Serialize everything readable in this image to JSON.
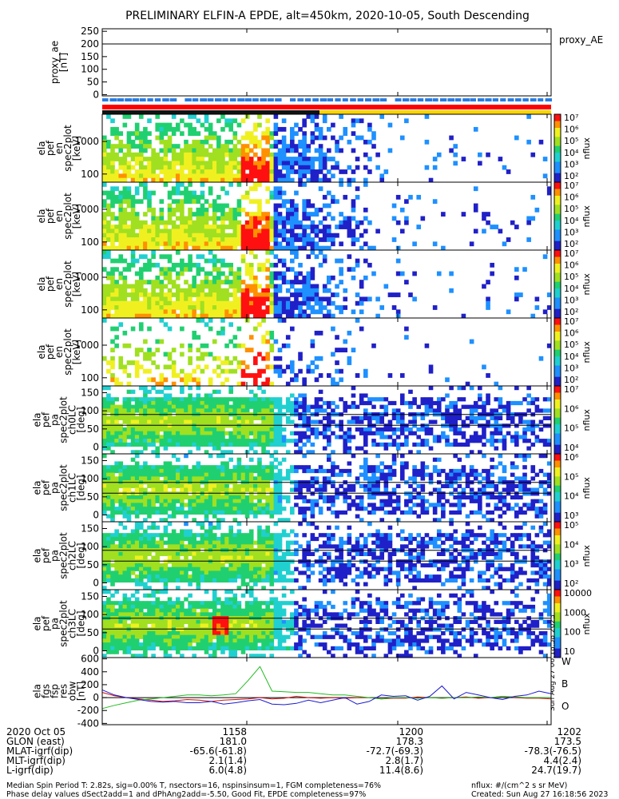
{
  "title": "PRELIMINARY ELFIN-A EPDE, alt=450km, 2020-10-05, South Descending",
  "created_stamp": "Sun Aug 27 06:18:58 2023",
  "chart_data": {
    "type": "heatmap",
    "x_ticks": [
      "1158",
      "1200",
      "1202"
    ],
    "panels": [
      {
        "kind": "line",
        "ylabel": [
          "proxy_ae",
          "[nT]"
        ],
        "ylim": [
          -5,
          260
        ],
        "yticks": [
          "250",
          "200",
          "150",
          "100",
          "50",
          "0"
        ],
        "legend": "proxy_AE",
        "hline": 200
      },
      {
        "kind": "spec",
        "ylabel": [
          "ela",
          "pef",
          "en",
          "spec2plot",
          "[keV]"
        ],
        "yticks": [
          "1000",
          "100"
        ],
        "zlabel": "nflux",
        "zticks": [
          "10⁷",
          "10⁶",
          "10⁵",
          "10⁴",
          "10³",
          "10²"
        ]
      },
      {
        "kind": "spec",
        "ylabel": [
          "ela",
          "pef",
          "en",
          "spec2plot",
          "[keV]"
        ],
        "yticks": [
          "1000",
          "100"
        ],
        "zlabel": "nflux",
        "zticks": [
          "10⁷",
          "10⁶",
          "10⁵",
          "10⁴",
          "10³",
          "10²"
        ]
      },
      {
        "kind": "spec",
        "ylabel": [
          "ela",
          "pef",
          "en",
          "spec2plot",
          "[keV]"
        ],
        "yticks": [
          "1000",
          "100"
        ],
        "zlabel": "nflux",
        "zticks": [
          "10⁷",
          "10⁶",
          "10⁵",
          "10⁴",
          "10³",
          "10²"
        ]
      },
      {
        "kind": "spec",
        "ylabel": [
          "ela",
          "pef",
          "en",
          "spec2plot",
          "[keV]"
        ],
        "yticks": [
          "1000",
          "100"
        ],
        "zlabel": "nflux",
        "zticks": [
          "10⁷",
          "10⁶",
          "10⁵",
          "10⁴",
          "10³",
          "10²"
        ]
      },
      {
        "kind": "pa",
        "ylabel": [
          "ela",
          "pef",
          "pa",
          "spec2plot",
          "ch0LC",
          "[deg]"
        ],
        "yticks": [
          "150",
          "100",
          "50",
          "0"
        ],
        "zlabel": "nflux",
        "zticks": [
          "10⁷",
          "10⁶",
          "10⁵",
          "10⁴"
        ]
      },
      {
        "kind": "pa",
        "ylabel": [
          "ela",
          "pef",
          "pa",
          "spec2plot",
          "ch1LC",
          "[deg]"
        ],
        "yticks": [
          "150",
          "100",
          "50",
          "0"
        ],
        "zlabel": "nflux",
        "zticks": [
          "10⁶",
          "10⁵",
          "10⁴",
          "10³"
        ]
      },
      {
        "kind": "pa",
        "ylabel": [
          "ela",
          "pef",
          "pa",
          "spec2plot",
          "ch2LC",
          "[deg]"
        ],
        "yticks": [
          "150",
          "100",
          "50",
          "0"
        ],
        "zlabel": "nflux",
        "zticks": [
          "10⁵",
          "10⁴",
          "10³",
          "10²"
        ]
      },
      {
        "kind": "pa",
        "ylabel": [
          "ela",
          "pef",
          "pa",
          "spec2plot",
          "ch3LC",
          "[deg]"
        ],
        "yticks": [
          "150",
          "100",
          "50",
          "0"
        ],
        "zlabel": "nflux",
        "zticks": [
          "10000",
          "1000",
          "100",
          "10"
        ]
      },
      {
        "kind": "line",
        "ylabel": [
          "ela",
          "fgs",
          "fsp",
          "res",
          "obw",
          "[nT]"
        ],
        "ylim": [
          -420,
          620
        ],
        "yticks": [
          "600",
          "400",
          "200",
          "0",
          "-200",
          "-400"
        ],
        "series": [
          {
            "name": "W",
            "color": "#d11010",
            "values": [
              80,
              30,
              0,
              -20,
              -40,
              -60,
              -50,
              -30,
              -40,
              -60,
              -40,
              -30,
              -20,
              0,
              -20,
              -10,
              20,
              0,
              -10,
              0,
              -10,
              0,
              0,
              -20,
              -10,
              -10,
              10,
              0,
              -10,
              0,
              10,
              -10,
              0,
              20,
              0,
              -10,
              -10,
              -20
            ]
          },
          {
            "name": "B",
            "color": "#22bb22",
            "values": [
              -170,
              -120,
              -80,
              -40,
              -20,
              0,
              20,
              40,
              40,
              30,
              40,
              60,
              260,
              480,
              100,
              90,
              80,
              80,
              60,
              40,
              40,
              20,
              0,
              -20,
              0,
              0,
              -10,
              0,
              -10,
              0,
              0,
              10,
              0,
              20,
              10,
              0,
              0,
              0
            ]
          },
          {
            "name": "O",
            "color": "#1a1ad0",
            "values": [
              120,
              40,
              0,
              -30,
              -60,
              -70,
              -60,
              -80,
              -80,
              -60,
              -100,
              -80,
              -50,
              -30,
              -100,
              -110,
              -90,
              -40,
              -80,
              -40,
              0,
              -100,
              -60,
              40,
              20,
              30,
              -40,
              20,
              180,
              -20,
              80,
              40,
              0,
              -30,
              20,
              40,
              100,
              60
            ]
          }
        ]
      }
    ]
  },
  "bars": {
    "blue_dashed": "#2a7de1",
    "black_red_split": "#111111",
    "red": "#ff0000",
    "yellow": "#ffd400"
  },
  "footer": {
    "labels": [
      "2020 Oct 05",
      "GLON (east)",
      "MLAT-igrf(dip)",
      "MLT-igrf(dip)",
      "L-igrf(dip)"
    ],
    "col1": [
      "1158",
      "181.0",
      "-65.6(-61.8)",
      "2.1(1.4)",
      "6.0(4.8)"
    ],
    "col2": [
      "1200",
      "178.3",
      "-72.7(-69.3)",
      "2.8(1.7)",
      "11.4(8.6)"
    ],
    "col3": [
      "1202",
      "173.5",
      "-78.3(-76.5)",
      "4.4(2.4)",
      "24.7(19.7)"
    ],
    "note1": "Median Spin Period T: 2.82s, sig=0.00% T, nsectors=16, nspinsinsum=1, FGM completeness=76%",
    "note2": "Phase delay values dSect2add=1 and dPhAng2add=-5.50, Good Fit, EPDE completeness=97%",
    "units": "nflux: #/(cm^2 s sr MeV)",
    "created": "Created: Sun Aug 27 16:18:56 2023"
  }
}
